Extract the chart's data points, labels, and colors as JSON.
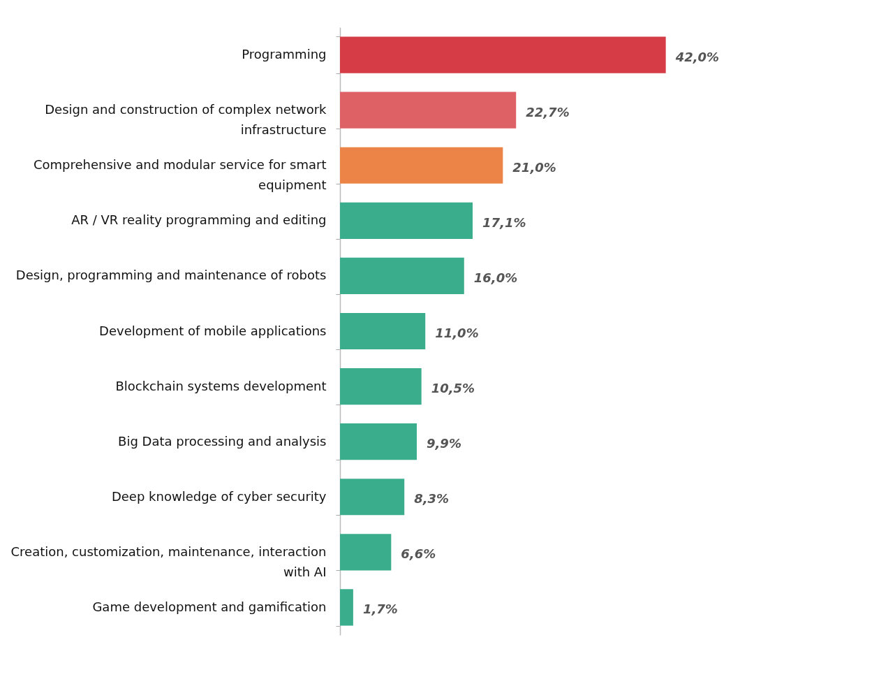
{
  "chart_data": {
    "type": "bar",
    "orientation": "horizontal",
    "categories": [
      "Programming",
      "Design and construction of complex network infrastructure",
      "Comprehensive and modular service for smart equipment",
      "AR / VR reality programming and editing",
      "Design, programming and maintenance of robots",
      "Development of mobile applications",
      "Blockchain systems development",
      "Big Data processing and analysis",
      "Deep knowledge of cyber security",
      "Creation, customization, maintenance, interaction with AI",
      "Game development and gamification"
    ],
    "values": [
      42.0,
      22.7,
      21.0,
      17.1,
      16.0,
      11.0,
      10.5,
      9.9,
      8.3,
      6.6,
      1.7
    ],
    "colors": [
      "#d63c45",
      "#de6166",
      "#ec8448",
      "#3aad8c",
      "#3aad8c",
      "#3aad8c",
      "#3aad8c",
      "#3aad8c",
      "#3aad8c",
      "#3aad8c",
      "#3aad8c"
    ],
    "value_labels": [
      "42,0%",
      "22,7%",
      "21,0%",
      "17,1%",
      "16,0%",
      "11,0%",
      "10,5%",
      "9,9%",
      "8,3%",
      "6,6%",
      "1,7%"
    ]
  }
}
